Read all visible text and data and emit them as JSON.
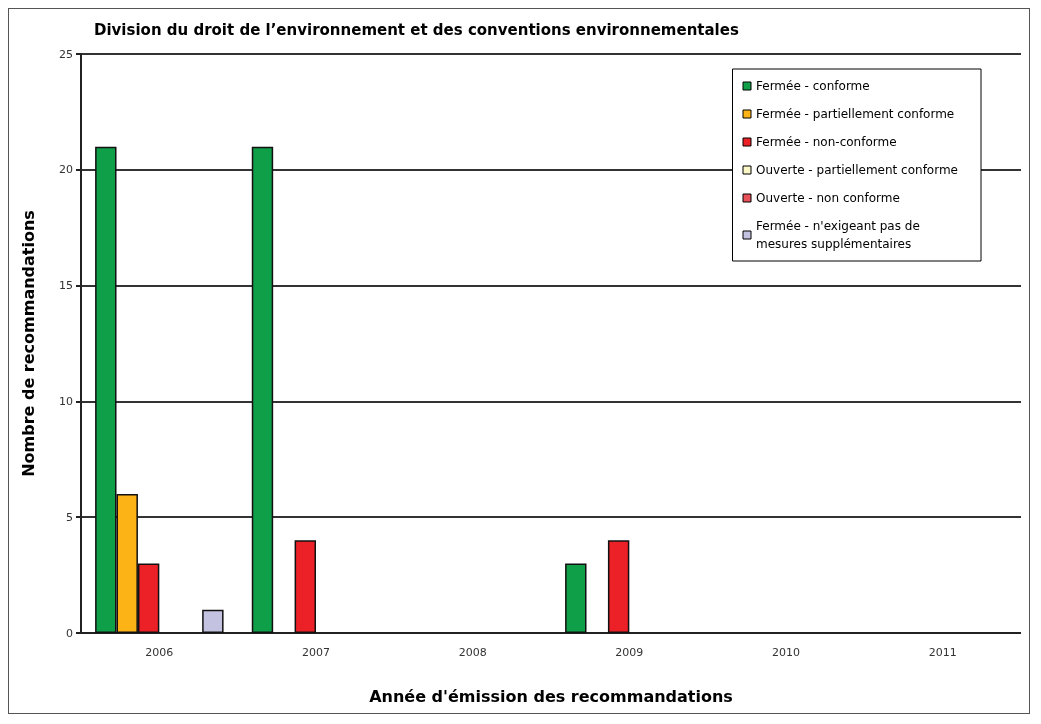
{
  "chart_data": {
    "type": "bar",
    "title": "Division du droit de l’environnement et des conventions environnementales",
    "xlabel": "Année d'émission des recommandations",
    "ylabel": "Nombre de recommandations",
    "categories": [
      "2006",
      "2007",
      "2008",
      "2009",
      "2010",
      "2011"
    ],
    "series": [
      {
        "name": "Fermée - conforme",
        "color": "#0f9f48",
        "values": [
          21,
          21,
          0,
          3,
          0,
          0
        ]
      },
      {
        "name": "Fermée - partiellement conforme",
        "color": "#fcb316",
        "values": [
          6,
          0,
          0,
          0,
          0,
          0
        ]
      },
      {
        "name": "Fermée - non-conforme",
        "color": "#ec2027",
        "values": [
          3,
          4,
          0,
          4,
          0,
          0
        ]
      },
      {
        "name": "Ouverte - partiellement conforme",
        "color": "#fbf6c6",
        "values": [
          0,
          0,
          0,
          0,
          0,
          0
        ]
      },
      {
        "name": "Ouverte - non conforme",
        "color": "#e8505a",
        "values": [
          0,
          0,
          0,
          0,
          0,
          0
        ]
      },
      {
        "name": "Fermée - n'exigeant pas de mesures supplémentaires",
        "color": "#c3c2e0",
        "values": [
          1,
          0,
          0,
          0,
          0,
          0
        ]
      }
    ],
    "ylim": [
      0,
      25
    ],
    "yticks": [
      0,
      5,
      10,
      15,
      20,
      25
    ],
    "grid": "y",
    "legend": "top right"
  }
}
